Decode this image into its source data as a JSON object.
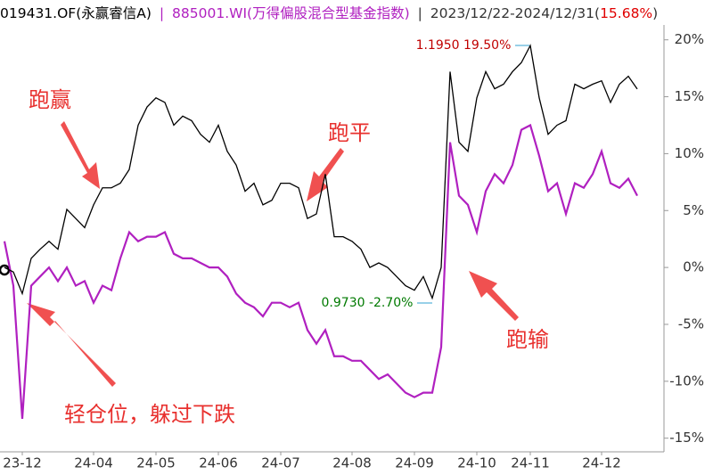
{
  "chart_data": {
    "type": "line",
    "header": {
      "separator": "|",
      "period": "2023/12/22-2024/12/31(",
      "period_return": "15.68%",
      "close": ")"
    },
    "categories": [
      null,
      null,
      "23-12",
      null,
      null,
      null,
      null,
      null,
      null,
      null,
      "24-04",
      null,
      null,
      null,
      null,
      null,
      null,
      "24-05",
      null,
      null,
      null,
      null,
      null,
      null,
      "24-06",
      null,
      null,
      null,
      null,
      null,
      null,
      "24-07",
      null,
      null,
      null,
      null,
      null,
      null,
      null,
      "24-08",
      null,
      null,
      null,
      null,
      null,
      null,
      "24-09",
      null,
      null,
      null,
      null,
      null,
      null,
      "24-10",
      null,
      null,
      null,
      null,
      null,
      "24-11",
      null,
      null,
      null,
      null,
      null,
      null,
      null,
      "24-12",
      null,
      null,
      null,
      null
    ],
    "series": [
      {
        "name": "019431.OF(永赢睿信A)",
        "color": "#000000",
        "values": [
          0,
          -0.4,
          -2.3,
          0.8,
          1.6,
          2.3,
          1.6,
          5.1,
          4.3,
          3.5,
          5.5,
          7.0,
          7.0,
          7.4,
          8.6,
          12.5,
          14.1,
          14.9,
          14.5,
          12.5,
          13.3,
          12.9,
          11.7,
          11.0,
          12.5,
          10.2,
          9.0,
          6.7,
          7.4,
          5.5,
          5.9,
          7.4,
          7.4,
          7.0,
          4.3,
          4.7,
          8.2,
          2.7,
          2.7,
          2.3,
          1.6,
          0,
          0.4,
          0,
          -0.8,
          -1.6,
          -2.0,
          -0.8,
          -2.7,
          0,
          17.2,
          11.0,
          10.2,
          14.9,
          17.2,
          15.7,
          16.1,
          17.2,
          18.0,
          19.5,
          14.9,
          11.7,
          12.5,
          12.9,
          16.1,
          15.7,
          16.1,
          16.4,
          14.5,
          16.1,
          16.8,
          15.68
        ]
      },
      {
        "name": "885001.WI(万得偏股混合型基金指数)",
        "color": "#b020c0",
        "values": [
          2.3,
          -1.6,
          -13.3,
          -1.6,
          -0.8,
          0,
          -1.2,
          0,
          -1.6,
          -1.2,
          -3.1,
          -1.6,
          -2.0,
          0.8,
          3.1,
          2.3,
          2.7,
          2.7,
          3.1,
          1.2,
          0.8,
          0.8,
          0.4,
          0,
          0,
          -0.8,
          -2.3,
          -3.1,
          -3.5,
          -4.3,
          -3.1,
          -3.1,
          -3.5,
          -3.1,
          -5.5,
          -6.7,
          -5.5,
          -7.8,
          -7.8,
          -8.2,
          -8.2,
          -9.0,
          -9.8,
          -9.4,
          -10.2,
          -11.0,
          -11.4,
          -11.0,
          -11.0,
          -7.0,
          11.0,
          6.3,
          5.5,
          3.1,
          6.7,
          8.2,
          7.4,
          9.0,
          12.1,
          12.5,
          9.8,
          6.7,
          7.4,
          4.7,
          7.4,
          7.0,
          8.2,
          10.2,
          7.4,
          7.0,
          7.8,
          6.3
        ]
      }
    ],
    "ylim": [
      -16.2,
      23.5
    ],
    "yticks": [
      {
        "value": 20,
        "label": "20%"
      },
      {
        "value": 15,
        "label": "15%"
      },
      {
        "value": 10,
        "label": "10%"
      },
      {
        "value": 5,
        "label": "5%"
      },
      {
        "value": 0,
        "label": "0%"
      },
      {
        "value": -5,
        "label": "-5%"
      },
      {
        "value": -10,
        "label": "-10%"
      },
      {
        "value": -15,
        "label": "-15%"
      }
    ],
    "annotations": [
      {
        "text": "1.1950 19.50%",
        "color": "#c00000"
      },
      {
        "text": "0.9730 -2.70%",
        "color": "#007a00"
      },
      {
        "text": "跑赢",
        "color": "#e8302e"
      },
      {
        "text": "跑平",
        "color": "#e8302e"
      },
      {
        "text": "跑输",
        "color": "#e8302e"
      },
      {
        "text": "轻仓位，躲过下跌",
        "color": "#e8302e"
      }
    ]
  }
}
